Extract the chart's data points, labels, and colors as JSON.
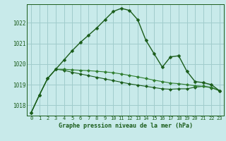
{
  "title": "Graphe pression niveau de la mer (hPa)",
  "background_color": "#c8eaea",
  "grid_color": "#a0cccc",
  "line_color_dark": "#1a5c1a",
  "line_color_mid": "#2e7d2e",
  "xlim": [
    -0.5,
    23.5
  ],
  "ylim": [
    1017.5,
    1022.9
  ],
  "yticks": [
    1018,
    1019,
    1020,
    1021,
    1022
  ],
  "xticks": [
    0,
    1,
    2,
    3,
    4,
    5,
    6,
    7,
    8,
    9,
    10,
    11,
    12,
    13,
    14,
    15,
    16,
    17,
    18,
    19,
    20,
    21,
    22,
    23
  ],
  "series1": [
    1017.65,
    1018.5,
    1019.3,
    1019.75,
    1020.2,
    1020.65,
    1021.05,
    1021.4,
    1021.75,
    1022.15,
    1022.55,
    1022.7,
    1022.6,
    1022.15,
    1021.15,
    1020.5,
    1019.85,
    1020.35,
    1020.4,
    1019.65,
    1019.15,
    1019.1,
    1019.0,
    1018.7
  ],
  "series2": [
    1017.65,
    1018.5,
    1019.3,
    1019.75,
    1019.75,
    1019.72,
    1019.7,
    1019.68,
    1019.65,
    1019.62,
    1019.58,
    1019.52,
    1019.45,
    1019.38,
    1019.3,
    1019.22,
    1019.15,
    1019.08,
    1019.05,
    1019.0,
    1018.95,
    1018.92,
    1018.88,
    1018.7
  ],
  "series3": [
    1017.65,
    1018.5,
    1019.3,
    1019.75,
    1019.7,
    1019.6,
    1019.52,
    1019.44,
    1019.36,
    1019.28,
    1019.2,
    1019.12,
    1019.04,
    1018.98,
    1018.92,
    1018.86,
    1018.8,
    1018.78,
    1018.8,
    1018.8,
    1018.88,
    1018.92,
    1018.85,
    1018.7
  ]
}
